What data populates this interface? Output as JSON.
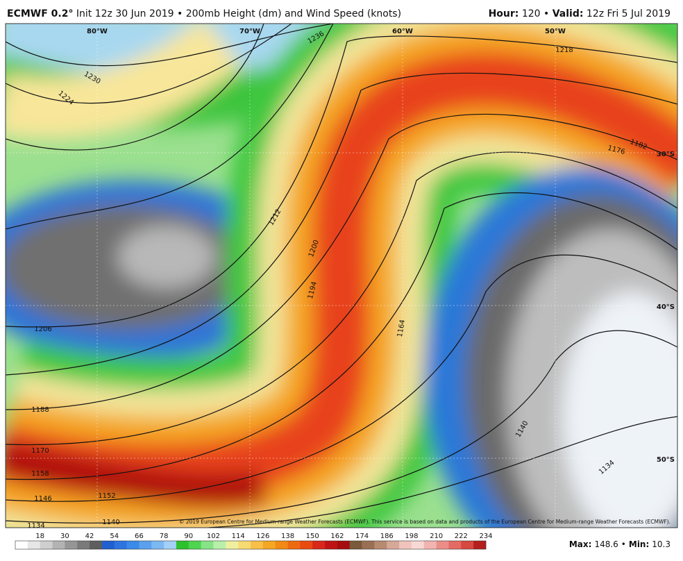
{
  "header": {
    "model": "ECMWF 0.2°",
    "description": "Init 12z 30 Jun 2019 • 200mb Height (dm) and Wind Speed (knots)",
    "hour_label": "Hour:",
    "hour": "120",
    "separator": "•",
    "valid_label": "Valid:",
    "valid": "12z Fri 5 Jul 2019"
  },
  "map": {
    "longitudes": [
      "80°W",
      "70°W",
      "60°W",
      "50°W"
    ],
    "latitudes": [
      "30°S",
      "40°S",
      "50°S"
    ],
    "contour_labels": [
      1236,
      1230,
      1224,
      1218,
      1212,
      1206,
      1200,
      1194,
      1188,
      1182,
      1176,
      1170,
      1164,
      1158,
      1152,
      1146,
      1140,
      1140,
      1134,
      1134
    ],
    "copyright": "© 2019 European Centre for Medium-range Weather Forecasts (ECMWF). This service is based on data and products of the European Centre for Medium-range Weather Forecasts (ECMWF)."
  },
  "colorbar": {
    "labels": [
      18,
      30,
      42,
      54,
      66,
      78,
      90,
      102,
      114,
      126,
      138,
      150,
      162,
      174,
      186,
      198,
      210,
      222,
      234
    ]
  },
  "footer": {
    "max_label": "Max:",
    "max": "148.6",
    "separator": "•",
    "min_label": "Min:",
    "min": "10.3"
  }
}
